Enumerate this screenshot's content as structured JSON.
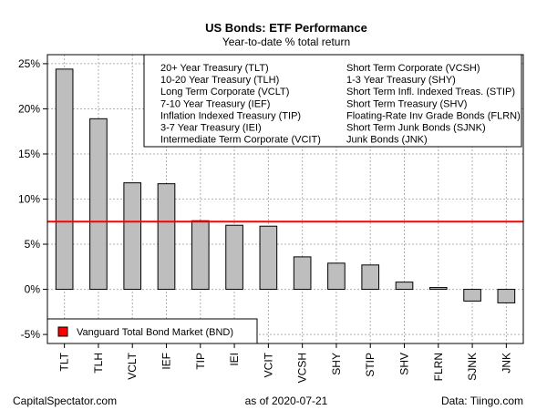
{
  "chart_data": {
    "type": "bar",
    "title": "US Bonds: ETF Performance",
    "subtitle": "Year-to-date % total return",
    "categories": [
      "TLT",
      "TLH",
      "VCLT",
      "IEF",
      "TIP",
      "IEI",
      "VCIT",
      "VCSH",
      "SHY",
      "STIP",
      "SHV",
      "FLRN",
      "SJNK",
      "JNK"
    ],
    "values": [
      24.4,
      18.9,
      11.8,
      11.7,
      7.6,
      7.1,
      7.0,
      3.6,
      2.9,
      2.7,
      0.8,
      0.2,
      -1.3,
      -1.5
    ],
    "ylim": [
      -6,
      26
    ],
    "yticks": [
      -5,
      0,
      5,
      10,
      15,
      20,
      25
    ],
    "ytick_labels": [
      "-5%",
      "0%",
      "5%",
      "10%",
      "15%",
      "20%",
      "25%"
    ],
    "bar_color": "#bebebe",
    "grid": true,
    "benchmark": {
      "name": "Vanguard Total Bond Market (BND)",
      "value": 7.5,
      "color": "#ff0000"
    },
    "legend_left": [
      "20+ Year Treasury (TLT)",
      "10-20 Year Treasury (TLH)",
      "Long Term Corporate (VCLT)",
      "7-10 Year Treasury (IEF)",
      "Inflation Indexed Treasury (TIP)",
      "3-7 Year Treasury (IEI)",
      "Intermediate Term Corporate (VCIT)"
    ],
    "legend_right": [
      "Short Term Corporate (VCSH)",
      "1-3 Year Treasury (SHY)",
      "Short Term Infl. Indexed Treas. (STIP)",
      "Short Term Treasury (SHV)",
      "Floating-Rate Inv Grade Bonds (FLRN)",
      "Short Term Junk Bonds (SJNK)",
      "Junk Bonds (JNK)"
    ],
    "legend_placement": "top-right",
    "benchmark_legend_placement": "bottom-left"
  },
  "footer": {
    "left": "CapitalSpectator.com",
    "center": "as of  2020-07-21",
    "right": "Data: Tiingo.com"
  }
}
